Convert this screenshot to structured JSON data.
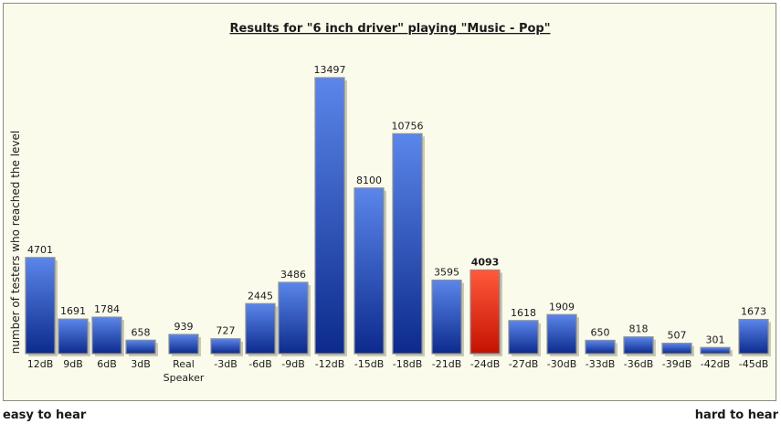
{
  "chart_data": {
    "type": "bar",
    "title": "Results for \"6 inch driver\" playing \"Music - Pop\"",
    "xlabel": "",
    "ylabel": "number of testers who reached the level",
    "categories": [
      "12dB",
      "9dB",
      "6dB",
      "3dB",
      "Real Speaker",
      "-3dB",
      "-6dB",
      "-9dB",
      "-12dB",
      "-15dB",
      "-18dB",
      "-21dB",
      "-24dB",
      "-27dB",
      "-30dB",
      "-33dB",
      "-36dB",
      "-39dB",
      "-42dB",
      "-45dB"
    ],
    "values": [
      4701,
      1691,
      1784,
      658,
      939,
      727,
      2445,
      3486,
      13497,
      8100,
      10756,
      3595,
      4093,
      1618,
      1909,
      650,
      818,
      507,
      301,
      1673
    ],
    "highlight_category": "-24dB",
    "ylim": [
      0,
      13497
    ],
    "grid": false,
    "colors": {
      "bar_top": "#5b86ea",
      "bar_bottom": "#0c2a8c",
      "highlight_top": "#ff5a3c",
      "highlight_bottom": "#c41200",
      "panel_background": "#fbfbec",
      "panel_border": "#8c8c7a"
    }
  },
  "footer": {
    "left_label": "easy to hear",
    "right_label": "hard to hear"
  }
}
